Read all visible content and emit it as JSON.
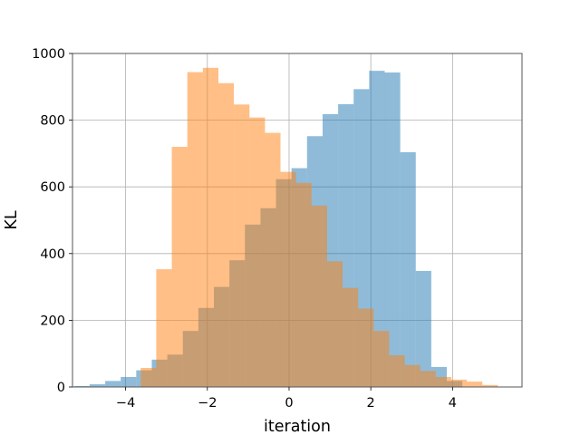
{
  "chart_data": {
    "type": "bar",
    "title": "",
    "xlabel": "iteration",
    "ylabel": "KL",
    "xlim": [
      -5.3,
      5.7
    ],
    "ylim": [
      0,
      1000
    ],
    "xticks": [
      -4,
      -2,
      0,
      2,
      4
    ],
    "xtick_labels": [
      "−4",
      "−2",
      "0",
      "2",
      "4"
    ],
    "yticks": [
      0,
      200,
      400,
      600,
      800,
      1000
    ],
    "ytick_labels": [
      "0",
      "200",
      "400",
      "600",
      "800",
      "1000"
    ],
    "grid": true,
    "legend": "none",
    "bar_alpha": 0.5,
    "series": [
      {
        "color": "#1f77b4",
        "bin_width": 0.38,
        "bins": [
          {
            "x0": -5.26,
            "count": 3
          },
          {
            "x0": -4.88,
            "count": 8
          },
          {
            "x0": -4.5,
            "count": 18
          },
          {
            "x0": -4.12,
            "count": 30
          },
          {
            "x0": -3.74,
            "count": 50
          },
          {
            "x0": -3.36,
            "count": 82
          },
          {
            "x0": -2.98,
            "count": 97
          },
          {
            "x0": -2.6,
            "count": 168
          },
          {
            "x0": -2.22,
            "count": 237
          },
          {
            "x0": -1.84,
            "count": 300
          },
          {
            "x0": -1.46,
            "count": 380
          },
          {
            "x0": -1.08,
            "count": 487
          },
          {
            "x0": -0.7,
            "count": 536
          },
          {
            "x0": -0.32,
            "count": 623
          },
          {
            "x0": 0.06,
            "count": 656
          },
          {
            "x0": 0.44,
            "count": 752
          },
          {
            "x0": 0.82,
            "count": 818
          },
          {
            "x0": 1.2,
            "count": 848
          },
          {
            "x0": 1.58,
            "count": 893
          },
          {
            "x0": 1.96,
            "count": 948
          },
          {
            "x0": 2.34,
            "count": 943
          },
          {
            "x0": 2.72,
            "count": 704
          },
          {
            "x0": 3.1,
            "count": 348
          },
          {
            "x0": 3.48,
            "count": 60
          },
          {
            "x0": 3.86,
            "count": 18
          }
        ]
      },
      {
        "color": "#ff7f0e",
        "bin_width": 0.38,
        "bins": [
          {
            "x0": -3.63,
            "count": 57
          },
          {
            "x0": -3.25,
            "count": 353
          },
          {
            "x0": -2.87,
            "count": 720
          },
          {
            "x0": -2.49,
            "count": 944
          },
          {
            "x0": -2.11,
            "count": 957
          },
          {
            "x0": -1.73,
            "count": 911
          },
          {
            "x0": -1.35,
            "count": 847
          },
          {
            "x0": -0.97,
            "count": 808
          },
          {
            "x0": -0.59,
            "count": 762
          },
          {
            "x0": -0.21,
            "count": 645
          },
          {
            "x0": 0.17,
            "count": 612
          },
          {
            "x0": 0.55,
            "count": 544
          },
          {
            "x0": 0.93,
            "count": 377
          },
          {
            "x0": 1.31,
            "count": 297
          },
          {
            "x0": 1.69,
            "count": 235
          },
          {
            "x0": 2.07,
            "count": 168
          },
          {
            "x0": 2.45,
            "count": 95
          },
          {
            "x0": 2.83,
            "count": 66
          },
          {
            "x0": 3.21,
            "count": 48
          },
          {
            "x0": 3.59,
            "count": 30
          },
          {
            "x0": 3.97,
            "count": 22
          },
          {
            "x0": 4.35,
            "count": 16
          },
          {
            "x0": 4.73,
            "count": 6
          }
        ]
      }
    ]
  }
}
